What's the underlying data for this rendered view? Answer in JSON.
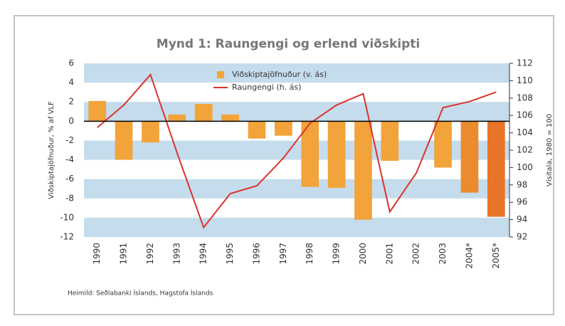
{
  "chart_data": {
    "type": "bar",
    "title": "Mynd 1: Raungengi og erlend viðskipti",
    "y_label": "Viðskiptajöfnuður, % af VLF",
    "y2_label": "Vísitala, 1980 = 100",
    "source": "Heimild: Seðlabanki Íslands, Hagstofa Íslands",
    "categories": [
      "1990",
      "1991",
      "1992",
      "1993",
      "1994",
      "1995",
      "1996",
      "1997",
      "1998",
      "1999",
      "2000",
      "2001",
      "2002",
      "2003",
      "2004*",
      "2005*"
    ],
    "series": [
      {
        "name": "Viðskiptajöfnuður (v. ás)",
        "type": "bar",
        "color": "#f2a33a",
        "colors": [
          "#f2a33a",
          "#f2a33a",
          "#f2a33a",
          "#f2a33a",
          "#f2a33a",
          "#f2a33a",
          "#f2a33a",
          "#f2a33a",
          "#f2a33a",
          "#f2a33a",
          "#f2a33a",
          "#f2a33a",
          "#f2a33a",
          "#f2a33a",
          "#ec8a2e",
          "#e8742a"
        ],
        "values": [
          2.1,
          -4.0,
          -2.2,
          0.7,
          1.8,
          0.7,
          -1.8,
          -1.5,
          -6.8,
          -6.9,
          -10.2,
          -4.1,
          null,
          -4.8,
          -7.4,
          -9.9
        ]
      },
      {
        "name": "Raungengi (h. ás)",
        "type": "line",
        "axis": "y2",
        "color": "#d9342b",
        "values": [
          104.6,
          107.2,
          110.7,
          101.7,
          93.1,
          97.0,
          97.9,
          101.1,
          105.1,
          107.2,
          108.5,
          94.9,
          99.4,
          106.9,
          107.6,
          108.7
        ]
      }
    ],
    "ylim": [
      -12,
      6
    ],
    "yticks": [
      -12,
      -10,
      -8,
      -6,
      -4,
      -2,
      0,
      2,
      4,
      6
    ],
    "y2lim": [
      92,
      112
    ],
    "y2ticks": [
      92,
      94,
      96,
      98,
      100,
      102,
      104,
      106,
      108,
      110,
      112
    ],
    "grid": true,
    "stripe_color": "#c5dcec",
    "legend": "top"
  }
}
